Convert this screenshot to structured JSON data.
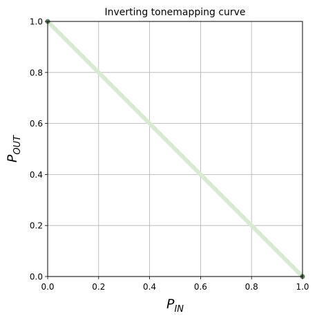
{
  "chart_data": {
    "type": "line",
    "title": "Inverting tonemapping curve",
    "xlabel": {
      "main": "P",
      "sub": "IN"
    },
    "ylabel": {
      "main": "P",
      "sub": "OUT"
    },
    "xlim": [
      0.0,
      1.0
    ],
    "ylim": [
      0.0,
      1.0
    ],
    "xticks": [
      "0.0",
      "0.2",
      "0.4",
      "0.6",
      "0.8",
      "1.0"
    ],
    "yticks": [
      "0.0",
      "0.2",
      "0.4",
      "0.6",
      "0.8",
      "1.0"
    ],
    "grid": true,
    "series": [
      {
        "x": [
          0.0,
          1.0
        ],
        "y": [
          1.0,
          0.0
        ],
        "color": "#d9ead3"
      }
    ],
    "endpoint_color": "#2e5a2e"
  }
}
